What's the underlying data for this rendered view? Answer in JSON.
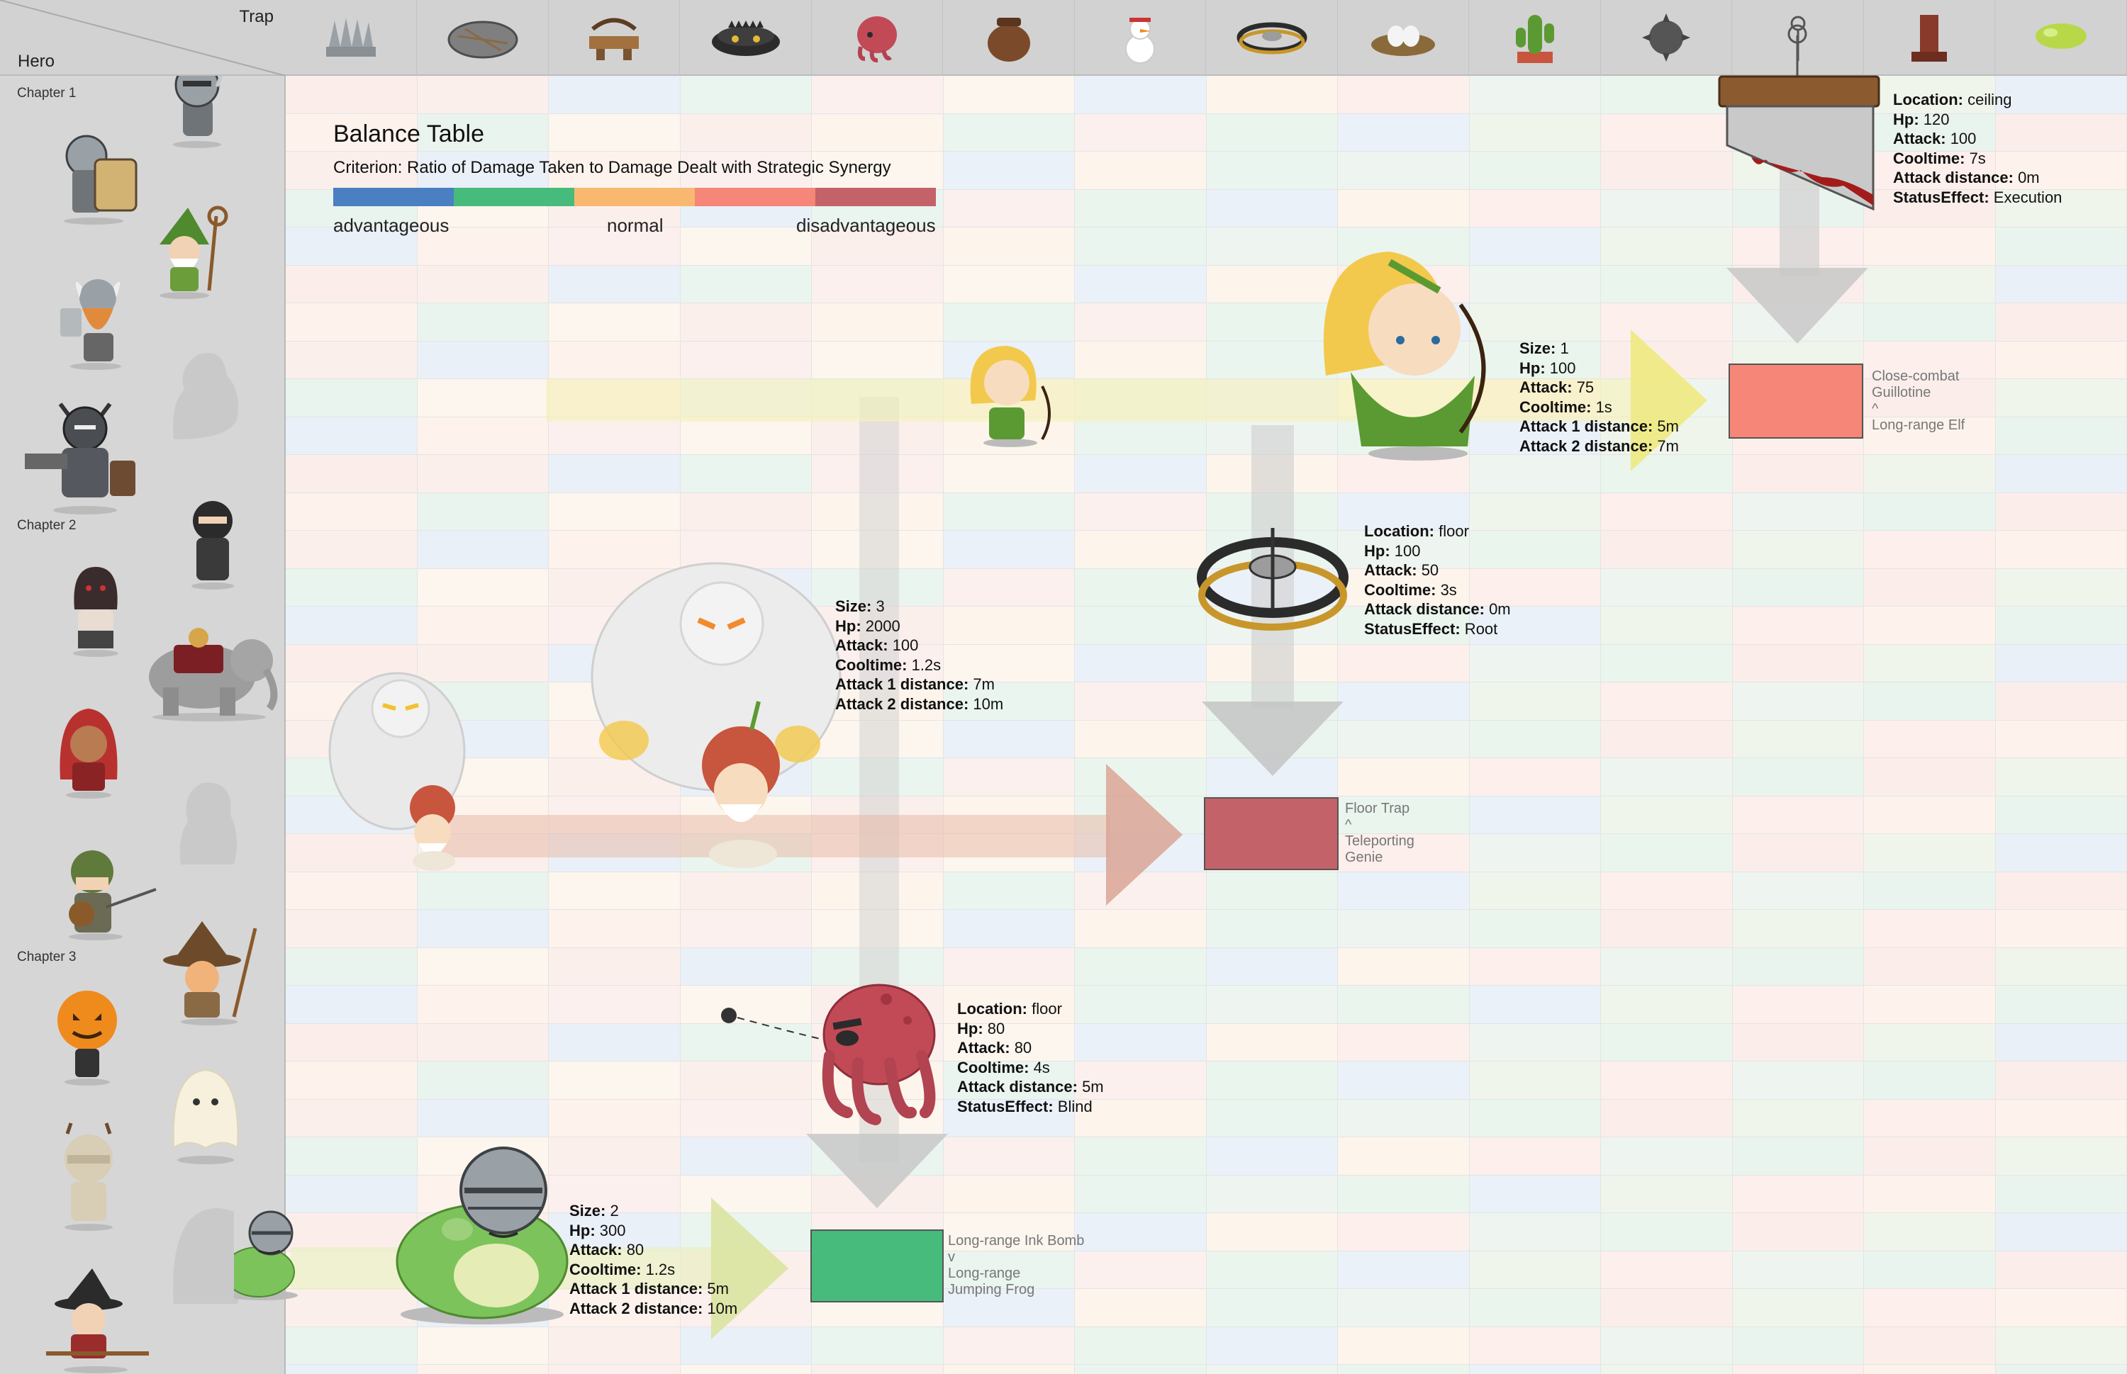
{
  "header": {
    "trap_label": "Trap",
    "hero_label": "Hero"
  },
  "traps": [
    {
      "name": "spike-trap-icon"
    },
    {
      "name": "net-trap-icon"
    },
    {
      "name": "crossbow-trap-icon"
    },
    {
      "name": "bomb-trap-icon"
    },
    {
      "name": "octopus-trap-icon"
    },
    {
      "name": "pot-trap-icon"
    },
    {
      "name": "snowman-trap-icon"
    },
    {
      "name": "bear-trap-icon"
    },
    {
      "name": "nest-trap-icon"
    },
    {
      "name": "cactus-trap-icon"
    },
    {
      "name": "spiked-ball-trap-icon"
    },
    {
      "name": "guillotine-trap-icon"
    },
    {
      "name": "catapult-trap-icon"
    },
    {
      "name": "slime-trap-icon"
    }
  ],
  "chapters": [
    "Chapter 1",
    "Chapter 2",
    "Chapter 3"
  ],
  "legend": {
    "title": "Balance Table",
    "criterion": "Criterion: Ratio of Damage Taken to Damage Dealt with Strategic Synergy",
    "colors": [
      "#4a7fc1",
      "#47bb7b",
      "#f9b870",
      "#f58678",
      "#c4626a"
    ],
    "labels": [
      "advantageous",
      "normal",
      "disadvantageous"
    ]
  },
  "info_guillotine": {
    "location_k": "Location:",
    "location_v": " ceiling",
    "hp_k": "Hp:",
    "hp_v": " 120",
    "attack_k": "Attack:",
    "attack_v": " 100",
    "cooltime_k": "Cooltime:",
    "cooltime_v": " 7s",
    "distance_k": "Attack distance:",
    "distance_v": " 0m",
    "status_k": "StatusEffect:",
    "status_v": " Execution"
  },
  "info_elf": {
    "size_k": "Size:",
    "size_v": " 1",
    "hp_k": "Hp:",
    "hp_v": " 100",
    "attack_k": "Attack:",
    "attack_v": " 75",
    "cooltime_k": "Cooltime:",
    "cooltime_v": " 1s",
    "d1_k": "Attack 1 distance:",
    "d1_v": " 5m",
    "d2_k": "Attack 2 distance:",
    "d2_v": " 7m"
  },
  "info_beartrap": {
    "location_k": "Location:",
    "location_v": " floor",
    "hp_k": "Hp:",
    "hp_v": " 100",
    "attack_k": "Attack:",
    "attack_v": " 50",
    "cooltime_k": "Cooltime:",
    "cooltime_v": " 3s",
    "distance_k": "Attack distance:",
    "distance_v": " 0m",
    "status_k": "StatusEffect:",
    "status_v": " Root"
  },
  "info_genie": {
    "size_k": "Size:",
    "size_v": " 3",
    "hp_k": "Hp:",
    "hp_v": " 2000",
    "attack_k": "Attack:",
    "attack_v": " 100",
    "cooltime_k": "Cooltime:",
    "cooltime_v": " 1.2s",
    "d1_k": "Attack 1 distance:",
    "d1_v": " 7m",
    "d2_k": "Attack 2 distance:",
    "d2_v": " 10m"
  },
  "info_octopus": {
    "location_k": "Location:",
    "location_v": " floor",
    "hp_k": "Hp:",
    "hp_v": " 80",
    "attack_k": "Attack:",
    "attack_v": " 80",
    "cooltime_k": "Cooltime:",
    "cooltime_v": " 4s",
    "distance_k": "Attack distance:",
    "distance_v": " 5m",
    "status_k": "StatusEffect:",
    "status_v": " Blind"
  },
  "info_frog": {
    "size_k": "Size:",
    "size_v": " 2",
    "hp_k": "Hp:",
    "hp_v": " 300",
    "attack_k": "Attack:",
    "attack_v": " 80",
    "cooltime_k": "Cooltime:",
    "cooltime_v": " 1.2s",
    "d1_k": "Attack 1 distance:",
    "d1_v": " 5m",
    "d2_k": "Attack 2 distance:",
    "d2_v": " 10m"
  },
  "results": {
    "guillotine_elf": {
      "line1": "Close-combat",
      "line2": "Guillotine",
      "symbol": "^",
      "line3": "Long-range Elf",
      "line4": "",
      "color": "#f58678"
    },
    "floor_genie": {
      "line1": "Floor Trap",
      "line2": "",
      "symbol": "^",
      "line3": "Teleporting",
      "line4": "Genie",
      "color": "#c4626a"
    },
    "ink_frog": {
      "line1": "Long-range Ink Bomb",
      "line2": "",
      "symbol": "v",
      "line3": "Long-range",
      "line4": "Jumping Frog",
      "color": "#47bb7b"
    }
  }
}
